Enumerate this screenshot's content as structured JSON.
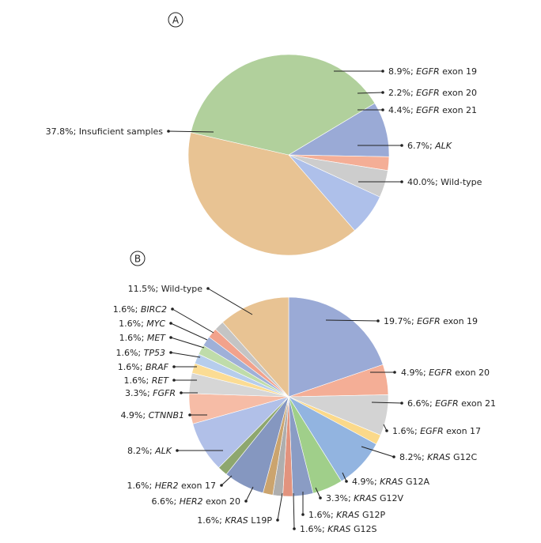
{
  "chart_data": [
    {
      "type": "pie",
      "panel_label": "A",
      "start_angle_deg": 59,
      "direction": "clockwise",
      "slices": [
        {
          "label": "8.9%; ",
          "gene": "EGFR",
          "suffix": " exon 19",
          "value": 8.9,
          "color": "#9aaad6"
        },
        {
          "label": "2.2%; ",
          "gene": "EGFR",
          "suffix": " exon 20",
          "value": 2.2,
          "color": "#f4ae96"
        },
        {
          "label": "4.4%; ",
          "gene": "EGFR",
          "suffix": " exon 21",
          "value": 4.4,
          "color": "#cdcdcd"
        },
        {
          "label": "6.7%; ",
          "gene": "ALK",
          "suffix": "",
          "value": 6.7,
          "color": "#aec0ea"
        },
        {
          "label": "40.0%; Wild-type",
          "gene": "",
          "suffix": "",
          "value": 40.0,
          "color": "#e8c393"
        },
        {
          "label": "37.8%; Insuficient samples",
          "gene": "",
          "suffix": "",
          "value": 37.8,
          "color": "#b1d09c"
        }
      ]
    },
    {
      "type": "pie",
      "panel_label": "B",
      "start_angle_deg": 0,
      "direction": "clockwise",
      "slices": [
        {
          "label": "19.7%; ",
          "gene": "EGFR",
          "suffix": " exon 19",
          "value": 19.7,
          "color": "#9aaad6"
        },
        {
          "label": "4.9%; ",
          "gene": "EGFR",
          "suffix": " exon 20",
          "value": 4.9,
          "color": "#f4ae96"
        },
        {
          "label": "6.6%; ",
          "gene": "EGFR",
          "suffix": " exon 21",
          "value": 6.6,
          "color": "#d3d3d3"
        },
        {
          "label": "1.6%; ",
          "gene": "EGFR",
          "suffix": " exon 17",
          "value": 1.6,
          "color": "#fbd98a"
        },
        {
          "label": "8.2%; ",
          "gene": "KRAS",
          "suffix": " G12C",
          "value": 8.2,
          "color": "#92b4e0"
        },
        {
          "label": "4.9%; ",
          "gene": "KRAS",
          "suffix": " G12A",
          "value": 4.9,
          "color": "#a0cf8a"
        },
        {
          "label": "3.3%; ",
          "gene": "KRAS",
          "suffix": " G12V",
          "value": 3.3,
          "color": "#8a9cc4"
        },
        {
          "label": "1.6%; ",
          "gene": "KRAS",
          "suffix": " G12P",
          "value": 1.6,
          "color": "#e2937e"
        },
        {
          "label": "1.6%; ",
          "gene": "KRAS",
          "suffix": " G12S",
          "value": 1.6,
          "color": "#aeaeae"
        },
        {
          "label": "1.6%; ",
          "gene": "KRAS",
          "suffix": " L19P",
          "value": 1.6,
          "color": "#cba46e"
        },
        {
          "label": "6.6%; ",
          "gene": "HER2",
          "suffix": " exon 20",
          "value": 6.6,
          "color": "#8597c0"
        },
        {
          "label": "1.6%; ",
          "gene": "HER2",
          "suffix": " exon 17",
          "value": 1.6,
          "color": "#8ea76e"
        },
        {
          "label": "8.2%; ",
          "gene": "ALK",
          "suffix": "",
          "value": 8.2,
          "color": "#b1c0e8"
        },
        {
          "label": "4.9%; ",
          "gene": "CTNNB1",
          "suffix": "",
          "value": 4.9,
          "color": "#f6bca6"
        },
        {
          "label": "3.3%; ",
          "gene": "FGFR",
          "suffix": "",
          "value": 3.3,
          "color": "#d6d6d6"
        },
        {
          "label": "1.6%; ",
          "gene": "RET",
          "suffix": "",
          "value": 1.6,
          "color": "#fbdc94"
        },
        {
          "label": "1.6%; ",
          "gene": "BRAF",
          "suffix": "",
          "value": 1.6,
          "color": "#b6cdec"
        },
        {
          "label": "1.6%; ",
          "gene": "TP53",
          "suffix": "",
          "value": 1.6,
          "color": "#bfdcaa"
        },
        {
          "label": "1.6%; ",
          "gene": "MET",
          "suffix": "",
          "value": 1.6,
          "color": "#9fb0d8"
        },
        {
          "label": "1.6%; ",
          "gene": "MYC",
          "suffix": "",
          "value": 1.6,
          "color": "#f2a28c"
        },
        {
          "label": "1.6%; ",
          "gene": "BIRC2",
          "suffix": "",
          "value": 1.6,
          "color": "#c4c4c4"
        },
        {
          "label": "11.5%; Wild-type",
          "gene": "",
          "suffix": "",
          "value": 11.5,
          "color": "#e8c393"
        }
      ]
    }
  ]
}
